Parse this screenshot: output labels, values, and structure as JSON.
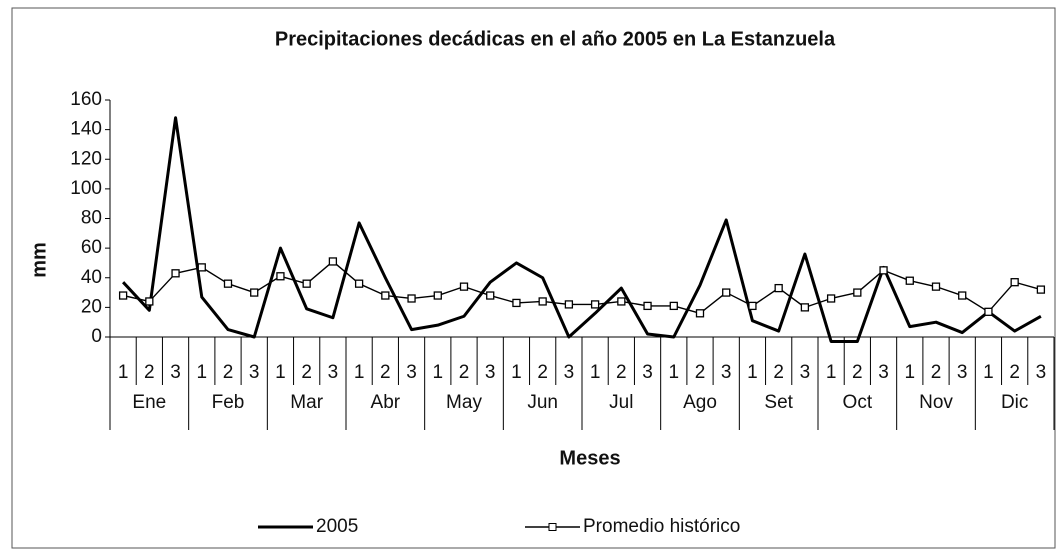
{
  "chart_data": {
    "type": "line",
    "title": "Precipitaciones decádicas en el año 2005 en La Estanzuela",
    "x_label": "Meses",
    "y_label": "mm",
    "categories": [
      "1",
      "2",
      "3",
      "1",
      "2",
      "3",
      "1",
      "2",
      "3",
      "1",
      "2",
      "3",
      "1",
      "2",
      "3",
      "1",
      "2",
      "3",
      "1",
      "2",
      "3",
      "1",
      "2",
      "3",
      "1",
      "2",
      "3",
      "1",
      "2",
      "3",
      "1",
      "2",
      "3",
      "1",
      "2",
      "3"
    ],
    "groups": [
      "Ene",
      "Feb",
      "Mar",
      "Abr",
      "May",
      "Jun",
      "Jul",
      "Ago",
      "Set",
      "Oct",
      "Nov",
      "Dic"
    ],
    "series": [
      {
        "name": "2005",
        "color": "#000000",
        "values": [
          37,
          18,
          148,
          27,
          5,
          0,
          60,
          19,
          13,
          77,
          40,
          5,
          8,
          14,
          37,
          50,
          40,
          0,
          16,
          33,
          2,
          0,
          35,
          79,
          11,
          4,
          56,
          -3,
          -3,
          47,
          7,
          10,
          3,
          17,
          4,
          14
        ]
      },
      {
        "name": "Promedio histórico",
        "color": "#000000",
        "values": [
          28,
          24,
          43,
          47,
          36,
          30,
          41,
          36,
          51,
          36,
          28,
          26,
          28,
          34,
          28,
          23,
          24,
          22,
          22,
          24,
          21,
          21,
          16,
          30,
          21,
          33,
          20,
          26,
          30,
          45,
          38,
          34,
          28,
          17,
          37,
          32
        ]
      }
    ],
    "ylim": [
      0,
      160
    ],
    "yticks": [
      0,
      20,
      40,
      60,
      80,
      100,
      120,
      140,
      160
    ],
    "grid": false,
    "legend": "bottom"
  }
}
